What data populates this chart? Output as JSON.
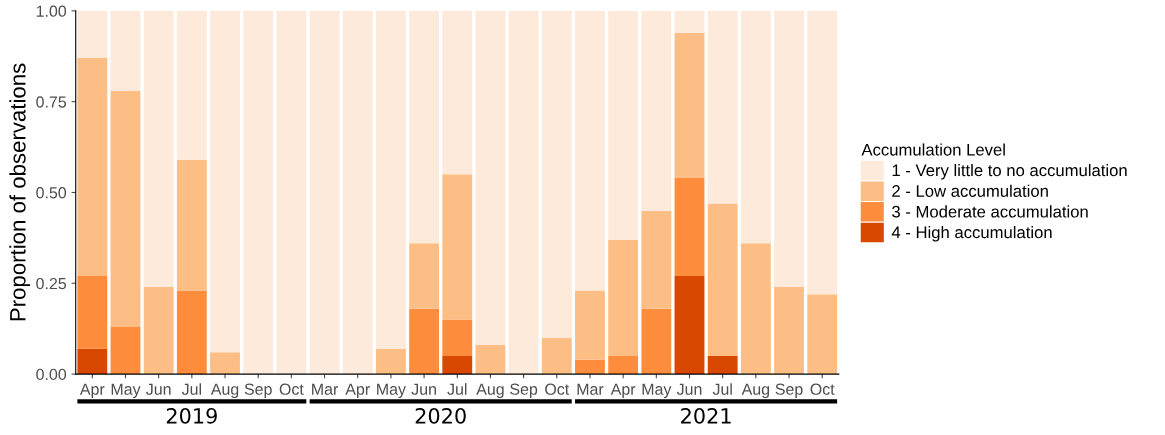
{
  "chart_data": {
    "type": "bar",
    "stacked": true,
    "ylabel": "Proportion of observations",
    "legend_title": "Accumulation Level",
    "legend": "right",
    "categories": [
      "Apr",
      "May",
      "Jun",
      "Jul",
      "Aug",
      "Sep",
      "Oct",
      "Mar",
      "Apr",
      "May",
      "Jun",
      "Jul",
      "Aug",
      "Sep",
      "Oct",
      "Mar",
      "Apr",
      "May",
      "Jun",
      "Jul",
      "Aug",
      "Sep",
      "Oct"
    ],
    "series": [
      {
        "name": "4 - High accumulation",
        "color": "#d94801",
        "values": [
          0.07,
          0,
          0,
          0,
          0,
          0,
          0,
          0,
          0,
          0,
          0,
          0.05,
          0,
          0,
          0,
          0,
          0,
          0,
          0.27,
          0.05,
          0,
          0,
          0
        ]
      },
      {
        "name": "3 - Moderate accumulation",
        "color": "#fd8d3c",
        "values": [
          0.2,
          0.13,
          0,
          0.23,
          0,
          0,
          0,
          0,
          0,
          0,
          0.18,
          0.1,
          0,
          0,
          0,
          0.04,
          0.05,
          0.18,
          0.27,
          0,
          0,
          0,
          0
        ]
      },
      {
        "name": "2 - Low accumulation",
        "color": "#fdbe85",
        "values": [
          0.6,
          0.65,
          0.24,
          0.36,
          0.06,
          0,
          0,
          0,
          0,
          0.07,
          0.18,
          0.4,
          0.08,
          0,
          0.1,
          0.19,
          0.32,
          0.27,
          0.4,
          0.42,
          0.36,
          0.24,
          0.22
        ]
      },
      {
        "name": "1 - Very little to no accumulation",
        "color": "#feeadb",
        "values": [
          0.13,
          0.22,
          0.76,
          0.41,
          0.94,
          1,
          1,
          1,
          1,
          0.93,
          0.64,
          0.45,
          0.92,
          1,
          0.9,
          0.77,
          0.63,
          0.55,
          0.06,
          0.53,
          0.64,
          0.76,
          0.78
        ]
      }
    ],
    "ylim": [
      0,
      1
    ],
    "yticks": [
      {
        "value": 0,
        "label": "0.00"
      },
      {
        "value": 0.25,
        "label": "0.25"
      },
      {
        "value": 0.5,
        "label": "0.50"
      },
      {
        "value": 0.75,
        "label": "0.75"
      },
      {
        "value": 1,
        "label": "1.00"
      }
    ],
    "annotations": [
      "2019",
      "2020",
      "2021"
    ]
  }
}
